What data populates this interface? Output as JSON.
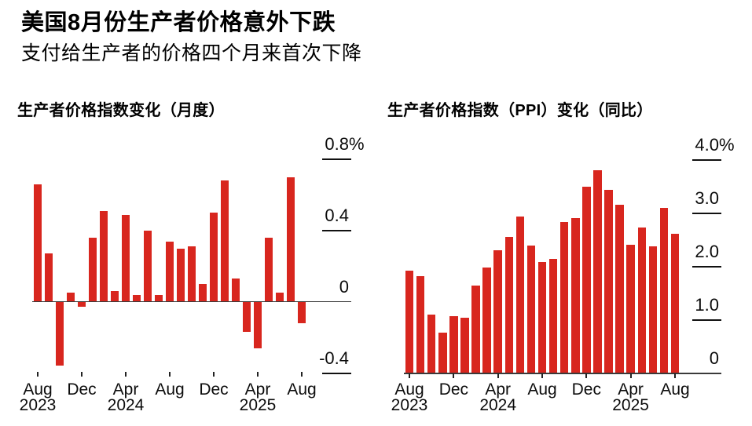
{
  "header": {
    "title": "美国8月份生产者价格意外下跌",
    "subtitle": "支付给生产者的价格四个月来首次下降"
  },
  "colors": {
    "bar": "#d8261e",
    "axis": "#3a3a3a",
    "tick": "#111111",
    "text": "#000000",
    "background": "#ffffff"
  },
  "chart_data": [
    {
      "type": "bar",
      "title": "生产者价格指数变化（月度）",
      "unit": "%",
      "grid": false,
      "legend": null,
      "categories": [
        "Aug 2023",
        "Sep 2023",
        "Oct 2023",
        "Nov 2023",
        "Dec 2023",
        "Jan 2024",
        "Feb 2024",
        "Mar 2024",
        "Apr 2024",
        "May 2024",
        "Jun 2024",
        "Jul 2024",
        "Aug 2024",
        "Sep 2024",
        "Oct 2024",
        "Nov 2024",
        "Dec 2024",
        "Jan 2025",
        "Feb 2025",
        "Mar 2025",
        "Apr 2025",
        "May 2025",
        "Jun 2025",
        "Jul 2025",
        "Aug 2025"
      ],
      "values": [
        0.66,
        0.27,
        -0.36,
        0.05,
        -0.03,
        0.36,
        0.51,
        0.06,
        0.49,
        0.04,
        0.4,
        0.04,
        0.34,
        0.3,
        0.31,
        0.1,
        0.5,
        0.68,
        0.13,
        -0.17,
        -0.26,
        0.36,
        0.05,
        0.7,
        -0.12
      ],
      "ylim": [
        -0.42,
        0.88
      ],
      "yticks": [
        {
          "value": 0.8,
          "label": "0.8",
          "suffix": "%"
        },
        {
          "value": 0.4,
          "label": "0.4"
        },
        {
          "value": 0,
          "label": "0",
          "axis": true
        },
        {
          "value": -0.4,
          "label": "-0.4"
        }
      ],
      "xticks": [
        {
          "index": 0,
          "label": "Aug",
          "year": "2023"
        },
        {
          "index": 4,
          "label": "Dec"
        },
        {
          "index": 8,
          "label": "Apr",
          "year": "2024"
        },
        {
          "index": 12,
          "label": "Aug"
        },
        {
          "index": 16,
          "label": "Dec"
        },
        {
          "index": 20,
          "label": "Apr",
          "year": "2025"
        },
        {
          "index": 24,
          "label": "Aug"
        }
      ]
    },
    {
      "type": "bar",
      "title": "生产者价格指数（PPI）变化（同比）",
      "unit": "%",
      "grid": false,
      "legend": null,
      "categories": [
        "Aug 2023",
        "Sep 2023",
        "Oct 2023",
        "Nov 2023",
        "Dec 2023",
        "Jan 2024",
        "Feb 2024",
        "Mar 2024",
        "Apr 2024",
        "May 2024",
        "Jun 2024",
        "Jul 2024",
        "Aug 2024",
        "Sep 2024",
        "Oct 2024",
        "Nov 2024",
        "Dec 2024",
        "Jan 2025",
        "Feb 2025",
        "Mar 2025",
        "Apr 2025",
        "May 2025",
        "Jun 2025",
        "Jul 2025",
        "Aug 2025"
      ],
      "values": [
        1.92,
        1.82,
        1.1,
        0.77,
        1.07,
        1.04,
        1.64,
        1.99,
        2.31,
        2.55,
        2.94,
        2.39,
        2.08,
        2.14,
        2.83,
        2.91,
        3.49,
        3.8,
        3.44,
        3.16,
        2.41,
        2.73,
        2.38,
        3.1,
        2.62
      ],
      "ylim": [
        0,
        4.2
      ],
      "yticks": [
        {
          "value": 4.0,
          "label": "4.0",
          "suffix": "%"
        },
        {
          "value": 3.0,
          "label": "3.0"
        },
        {
          "value": 2.0,
          "label": "2.0"
        },
        {
          "value": 1.0,
          "label": "1.0"
        },
        {
          "value": 0,
          "label": "0",
          "axis": true
        }
      ],
      "xticks": [
        {
          "index": 0,
          "label": "Aug",
          "year": "2023"
        },
        {
          "index": 4,
          "label": "Dec"
        },
        {
          "index": 8,
          "label": "Apr",
          "year": "2024"
        },
        {
          "index": 12,
          "label": "Aug"
        },
        {
          "index": 16,
          "label": "Dec"
        },
        {
          "index": 20,
          "label": "Apr",
          "year": "2025"
        },
        {
          "index": 24,
          "label": "Aug"
        }
      ]
    }
  ]
}
